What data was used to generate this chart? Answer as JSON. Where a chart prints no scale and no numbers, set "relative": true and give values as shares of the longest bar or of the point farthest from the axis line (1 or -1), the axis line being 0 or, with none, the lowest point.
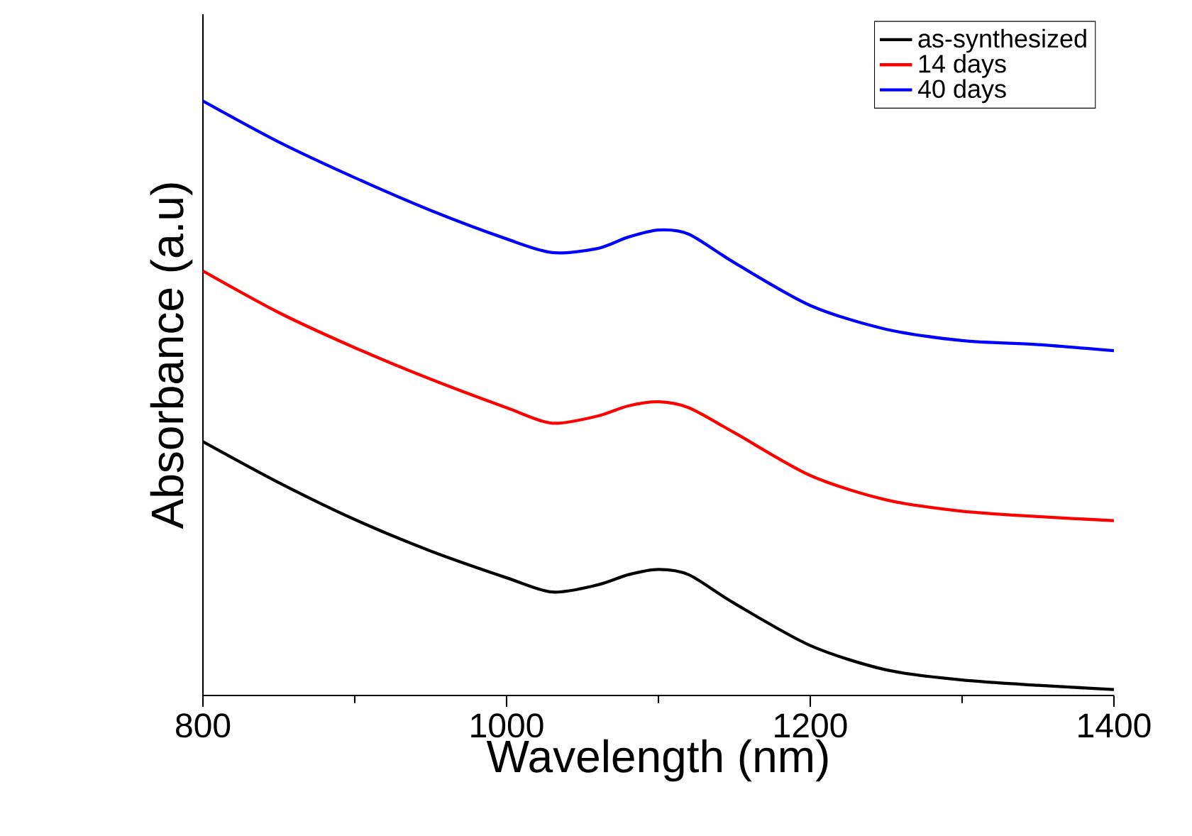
{
  "chart_data": {
    "type": "line",
    "xlabel": "Wavelength (nm)",
    "ylabel": "Absorbance (a.u)",
    "x": [
      800,
      850,
      900,
      950,
      1000,
      1030,
      1060,
      1080,
      1100,
      1120,
      1150,
      1200,
      1250,
      1300,
      1350,
      1400
    ],
    "xlim": [
      800,
      1400
    ],
    "xticks": [
      800,
      1000,
      1200,
      1400
    ],
    "relative": true,
    "legend": "top right",
    "grid": false,
    "marker": "none",
    "line_style": "solid",
    "series": [
      {
        "name": "as-synthesized",
        "color": "#000000",
        "values": [
          0.427,
          0.358,
          0.296,
          0.243,
          0.198,
          0.174,
          0.186,
          0.203,
          0.212,
          0.203,
          0.155,
          0.084,
          0.043,
          0.026,
          0.017,
          0.01
        ]
      },
      {
        "name": "14 days",
        "color": "#ff0000",
        "values": [
          0.714,
          0.644,
          0.585,
          0.532,
          0.484,
          0.458,
          0.47,
          0.487,
          0.494,
          0.484,
          0.442,
          0.37,
          0.329,
          0.31,
          0.301,
          0.294
        ]
      },
      {
        "name": "40 days",
        "color": "#0000ff",
        "values": [
          1.0,
          0.931,
          0.871,
          0.816,
          0.768,
          0.745,
          0.752,
          0.771,
          0.783,
          0.776,
          0.728,
          0.656,
          0.616,
          0.597,
          0.59,
          0.58
        ]
      }
    ]
  }
}
